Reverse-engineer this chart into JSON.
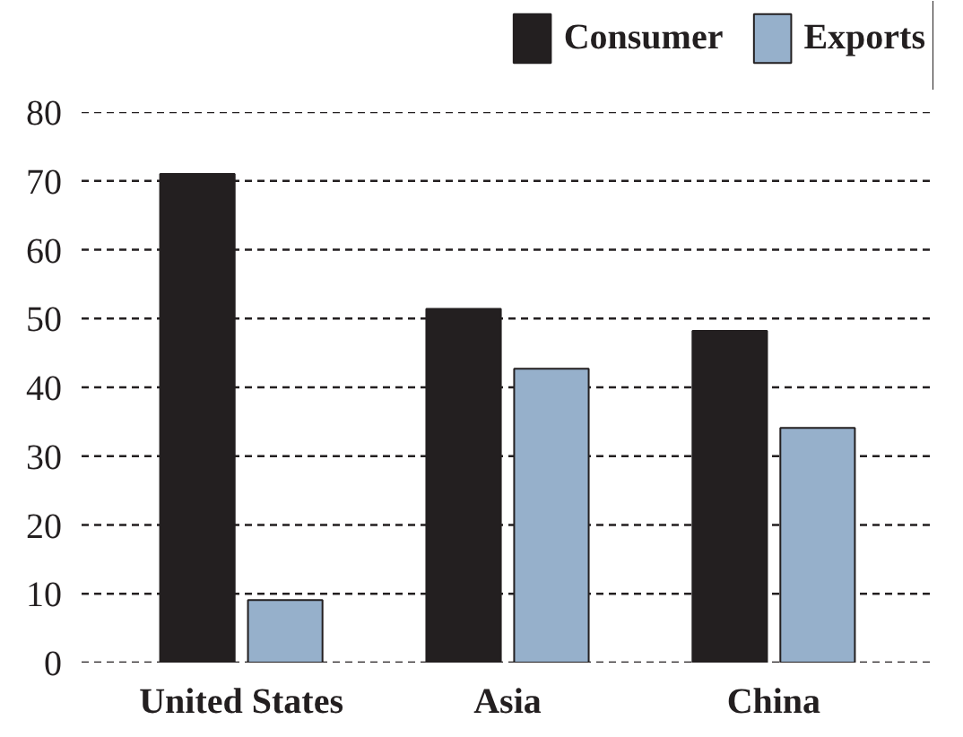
{
  "chart_data": {
    "type": "bar",
    "categories": [
      "United States",
      "Asia",
      "China"
    ],
    "series": [
      {
        "name": "Consumer",
        "color": "#231f20",
        "values": [
          71,
          51.4,
          48.2
        ]
      },
      {
        "name": "Exports",
        "color": "#96b0cb",
        "values": [
          9.1,
          42.7,
          34.1
        ]
      }
    ],
    "ylim": [
      0,
      80
    ],
    "yticks": [
      0,
      10,
      20,
      30,
      40,
      50,
      60,
      70,
      80
    ],
    "grid": "y",
    "legend": "top right"
  }
}
